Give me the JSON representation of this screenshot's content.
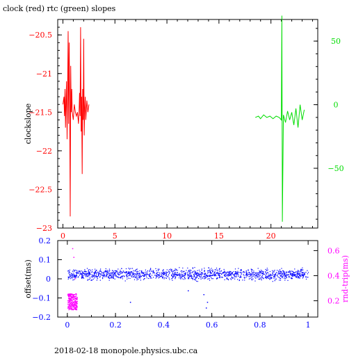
{
  "page": {
    "title": "clock (red) rtc (green) slopes",
    "footer": "2018-02-18  monopole.physics.ubc.ca"
  },
  "colors": {
    "red": "#ff0000",
    "green": "#00dd00",
    "blue": "#0000ff",
    "magenta": "#ff00ff",
    "axis": "#000000"
  },
  "chart_data": [
    {
      "type": "line",
      "title": "clock (red) rtc (green) slopes",
      "ylabel": "clockslope",
      "xlim": [
        -0.5,
        24.5
      ],
      "ylim": [
        -23,
        -20.3
      ],
      "y2lim": [
        -97,
        67
      ],
      "x_ticks": [
        0,
        5,
        10,
        15,
        20
      ],
      "y_ticks": [
        -23,
        -22.5,
        -22,
        -21.5,
        -21,
        -20.5
      ],
      "y2_ticks": [
        -50,
        0,
        50
      ],
      "y2_tick_labels": [
        "−50",
        "0",
        "50"
      ],
      "series": [
        {
          "axis": "left",
          "color": "red",
          "x": [
            0,
            0.1,
            0.15,
            0.2,
            0.25,
            0.3,
            0.35,
            0.4,
            0.45,
            0.5,
            0.55,
            0.6,
            0.65,
            0.7,
            0.75,
            0.8,
            0.85,
            0.9,
            1.0,
            1.1,
            1.2,
            1.3,
            1.4,
            1.5,
            1.55,
            1.6,
            1.65,
            1.7,
            1.75,
            1.8,
            1.85,
            1.9,
            1.95,
            2.0,
            2.05,
            2.1,
            2.15,
            2.2,
            2.3,
            2.4,
            2.5
          ],
          "y": [
            -21.4,
            -21.3,
            -21.55,
            -21.2,
            -21.7,
            -21.35,
            -21.1,
            -21.85,
            -21.25,
            -20.45,
            -21.65,
            -20.6,
            -21.35,
            -22.85,
            -20.9,
            -21.5,
            -21.2,
            -21.5,
            -21.6,
            -21.4,
            -21.5,
            -21.55,
            -21.5,
            -21.65,
            -21.5,
            -21.25,
            -21.55,
            -20.4,
            -21.75,
            -21.3,
            -22.3,
            -21.2,
            -21.6,
            -20.55,
            -21.8,
            -21.45,
            -21.3,
            -21.6,
            -21.35,
            -21.5,
            -21.4
          ]
        },
        {
          "axis": "right",
          "color": "green",
          "x": [
            18.5,
            18.8,
            19.0,
            19.3,
            19.6,
            19.9,
            20.2,
            20.5,
            20.8,
            21.0,
            21.05,
            21.1,
            21.2,
            21.4,
            21.6,
            21.8,
            22.0,
            22.2,
            22.4,
            22.6,
            22.8,
            23.0,
            23.2
          ],
          "y": [
            -10,
            -9,
            -11,
            -8,
            -10,
            -9,
            -11,
            -9,
            -10,
            -12,
            70,
            -92,
            -8,
            -14,
            -5,
            -12,
            -6,
            -16,
            -3,
            -18,
            0,
            -12,
            -4
          ]
        }
      ]
    },
    {
      "type": "scatter",
      "xlim": [
        -0.04,
        1.04
      ],
      "ylim": [
        -0.2,
        0.2
      ],
      "y2lim": [
        0.07,
        0.68
      ],
      "ylabel": "offset(ms)",
      "y2label": "rnd-trip(ms)",
      "x_ticks": [
        0,
        0.2,
        0.4,
        0.6,
        0.8,
        1
      ],
      "x_tick_labels": [
        "0",
        "0.2",
        "0.4",
        "0.6",
        "0.8",
        "1"
      ],
      "y_ticks": [
        -0.2,
        -0.1,
        0,
        0.1,
        0.2
      ],
      "y_tick_labels": [
        "−0.2",
        "−0.1",
        "0",
        "0.1",
        "0.2"
      ],
      "y2_ticks": [
        0.2,
        0.4,
        0.6
      ],
      "y2_tick_labels": [
        "0.2",
        "0.4",
        "0.6"
      ],
      "series": [
        {
          "axis": "left",
          "color": "blue",
          "x_range": [
            0,
            1
          ],
          "center": 0.025,
          "spread": 0.035,
          "outliers": [
            [
              0.575,
              -0.15
            ],
            [
              0.58,
              -0.12
            ],
            [
              0.585,
              0.06
            ],
            [
              0.565,
              -0.08
            ],
            [
              0.5,
              -0.06
            ],
            [
              0.26,
              -0.12
            ]
          ]
        },
        {
          "axis": "right",
          "color": "magenta",
          "x_range": [
            0,
            0.04
          ],
          "band": [
            0.13,
            0.26
          ],
          "outliers": [
            [
              0.02,
              0.62
            ],
            [
              0.025,
              0.55
            ],
            [
              0.03,
              0.38
            ]
          ]
        }
      ]
    }
  ]
}
